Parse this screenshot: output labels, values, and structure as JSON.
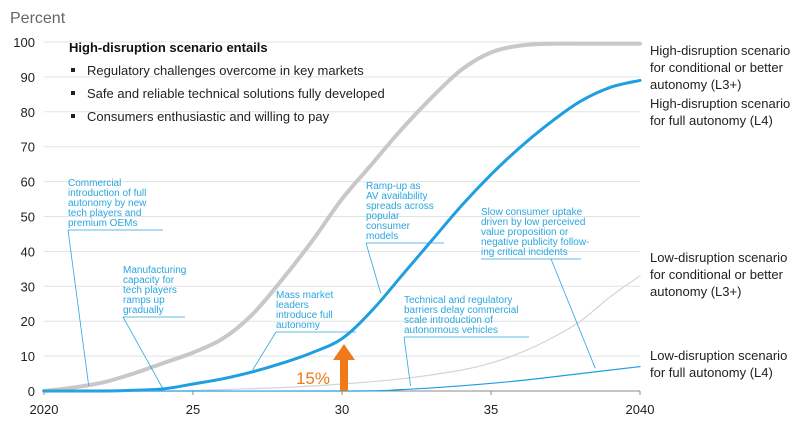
{
  "chart_data": {
    "type": "line",
    "ylabel": "Percent",
    "ylim": [
      0,
      100
    ],
    "xlim": [
      2020,
      2040
    ],
    "y_ticks": [
      0,
      10,
      20,
      30,
      40,
      50,
      60,
      70,
      80,
      90,
      100
    ],
    "x_ticks": [
      {
        "value": 2020,
        "label": "2020"
      },
      {
        "value": 2025,
        "label": "25"
      },
      {
        "value": 2030,
        "label": "30"
      },
      {
        "value": 2035,
        "label": "35"
      },
      {
        "value": 2040,
        "label": "2040"
      }
    ],
    "grid": "horizontal",
    "scenario_box": {
      "title": "High-disruption scenario entails",
      "bullets": [
        "Regulatory challenges overcome in key markets",
        "Safe and reliable technical solutions fully developed",
        "Consumers enthusiastic and willing to pay"
      ]
    },
    "series": [
      {
        "name": "High-disruption scenario for conditional or better autonomy (L3+)",
        "label_lines": [
          "High-disruption scenario",
          "for conditional or better",
          "autonomy (L3+)"
        ],
        "color": "#c8c8c8",
        "x": [
          2020,
          2021,
          2022,
          2023,
          2024,
          2025,
          2026,
          2027,
          2028,
          2029,
          2030,
          2031,
          2032,
          2033,
          2034,
          2035,
          2036,
          2037,
          2038,
          2039,
          2040
        ],
        "y": [
          0,
          1,
          2.5,
          5,
          8,
          11,
          15,
          22,
          32,
          43,
          55,
          65,
          75,
          84,
          92,
          97,
          99,
          99.5,
          99.5,
          99.5,
          99.5
        ]
      },
      {
        "name": "High-disruption scenario for full autonomy (L4)",
        "label_lines": [
          "High-disruption scenario",
          "for  full autonomy (L4)"
        ],
        "color": "#1f9ee0",
        "x": [
          2020,
          2022,
          2023,
          2024,
          2025,
          2026,
          2027,
          2028,
          2029,
          2030,
          2031,
          2032,
          2033,
          2034,
          2035,
          2036,
          2037,
          2038,
          2039,
          2040
        ],
        "y": [
          0,
          0,
          0.2,
          0.6,
          2,
          3.5,
          5.5,
          8,
          11,
          15,
          23,
          33,
          43,
          53,
          62,
          70,
          77,
          83,
          87,
          89
        ]
      },
      {
        "name": "Low-disruption scenario for conditional or better autonomy (L3+)",
        "label_lines": [
          "Low-disruption scenario",
          "for  conditional or better",
          "autonomy (L3+)"
        ],
        "color": "#d4d4d4",
        "x": [
          2020,
          2024,
          2026,
          2028,
          2030,
          2032,
          2034,
          2035,
          2036,
          2037,
          2038,
          2039,
          2040
        ],
        "y": [
          0,
          0,
          0.4,
          1,
          2,
          3.5,
          6,
          8,
          11,
          15,
          20,
          27,
          33
        ]
      },
      {
        "name": "Low-disruption scenario for full autonomy (L4)",
        "label_lines": [
          "Low-disruption scenario",
          "for  full autonomy (L4)"
        ],
        "color": "#1f9ee0",
        "x": [
          2020,
          2030,
          2032,
          2034,
          2036,
          2038,
          2040
        ],
        "y": [
          0,
          0,
          0.4,
          1.5,
          3,
          5,
          7
        ]
      }
    ],
    "annotations": [
      {
        "lines": [
          "Commercial",
          "introduction of full",
          "autonomy by new",
          "tech players and",
          "premium OEMs"
        ],
        "x": 2021.5,
        "y": 1.5
      },
      {
        "lines": [
          "Manufacturing",
          "capacity for",
          "tech players",
          "ramps up",
          "gradually"
        ],
        "x": 2024,
        "y": 0.5
      },
      {
        "lines": [
          "Mass market",
          "leaders",
          "introduce full",
          "autonomy"
        ],
        "x": 2027,
        "y": 6
      },
      {
        "lines": [
          "Ramp-up as",
          "AV availability",
          "spreads across",
          "popular",
          "consumer",
          "models"
        ],
        "x": 2031.3,
        "y": 28
      },
      {
        "lines": [
          "Technical and regulatory",
          "barriers delay commercial",
          "scale introduction of",
          "autonomous vehicles"
        ],
        "x": 2032.3,
        "y": 1.5
      },
      {
        "lines": [
          "Slow consumer uptake",
          "driven by low perceived",
          "value proposition or",
          "negative publicity follow-",
          "ing critical incidents"
        ],
        "x": 2038.5,
        "y": 6.5
      }
    ],
    "highlight": {
      "x": 2030,
      "y": 15,
      "label": "15%",
      "color": "#f07a1a"
    }
  }
}
